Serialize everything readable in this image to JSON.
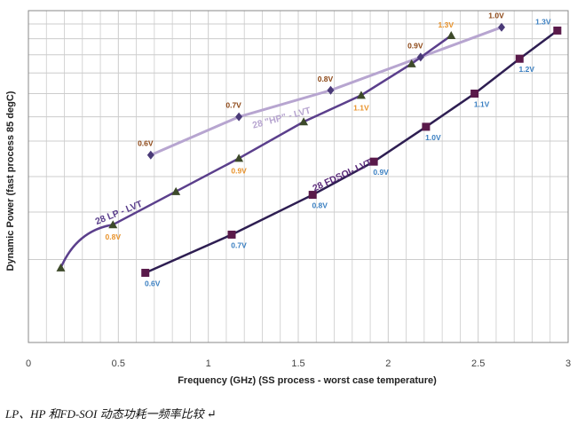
{
  "caption": "LP、HP 和FD-SOI 动态功耗一频率比较 ↵",
  "chart_data": {
    "type": "line",
    "title": "",
    "xlabel": "Frequency (GHz) (SS process - worst case temperature)",
    "ylabel": "Dynamic Power (fast process 85 degC)",
    "xlim": [
      0,
      3
    ],
    "x_ticks": [
      "0",
      "0.5",
      "1",
      "1.5",
      "2",
      "2.5",
      "3"
    ],
    "grid": true,
    "colors": {
      "grid": "#cccccc",
      "axis": "#888888",
      "orange": "#e8922a",
      "blue": "#3a7fc1",
      "brown": "#8b4513"
    },
    "series": [
      {
        "name": "28 \"HP\" - LVT",
        "color": "#b7a5d0",
        "marker": "diamond",
        "marker_color": "#4a3a78",
        "points": [
          {
            "x": 0.68,
            "y": 0.565,
            "label": "0.6V",
            "label_color": "#8b4513"
          },
          {
            "x": 1.17,
            "y": 0.68,
            "label": "0.7V",
            "label_color": "#8b4513"
          },
          {
            "x": 1.68,
            "y": 0.76,
            "label": "0.8V",
            "label_color": "#8b4513"
          },
          {
            "x": 2.18,
            "y": 0.86,
            "label": "0.9V",
            "label_color": "#8b4513"
          },
          {
            "x": 2.63,
            "y": 0.95,
            "label": "1.0V",
            "label_color": "#8b4513"
          }
        ]
      },
      {
        "name": "28 LP - LVT",
        "color": "#5b3f8c",
        "marker": "triangle",
        "marker_color": "#3d4a2a",
        "points": [
          {
            "x": 0.18,
            "y": 0.225,
            "label": "",
            "label_color": "#e8922a"
          },
          {
            "x": 0.47,
            "y": 0.355,
            "label": "0.8V",
            "label_color": "#e8922a"
          },
          {
            "x": 0.82,
            "y": 0.455,
            "label": "",
            "label_color": "#e8922a"
          },
          {
            "x": 1.17,
            "y": 0.555,
            "label": "0.9V",
            "label_color": "#e8922a"
          },
          {
            "x": 1.53,
            "y": 0.665,
            "label": "",
            "label_color": "#e8922a"
          },
          {
            "x": 1.85,
            "y": 0.745,
            "label": "1.1V",
            "label_color": "#e8922a"
          },
          {
            "x": 2.13,
            "y": 0.84,
            "label": "",
            "label_color": "#e8922a"
          },
          {
            "x": 2.35,
            "y": 0.925,
            "label": "1.3V",
            "label_color": "#e8922a"
          }
        ]
      },
      {
        "name": "28 FDSOI- LVT",
        "color": "#2e1e52",
        "marker": "square",
        "marker_color": "#5a1a4a",
        "points": [
          {
            "x": 0.65,
            "y": 0.21,
            "label": "0.6V",
            "label_color": "#3a7fc1"
          },
          {
            "x": 1.13,
            "y": 0.325,
            "label": "0.7V",
            "label_color": "#3a7fc1"
          },
          {
            "x": 1.58,
            "y": 0.445,
            "label": "0.8V",
            "label_color": "#3a7fc1"
          },
          {
            "x": 1.92,
            "y": 0.545,
            "label": "0.9V",
            "label_color": "#3a7fc1"
          },
          {
            "x": 2.21,
            "y": 0.65,
            "label": "1.0V",
            "label_color": "#3a7fc1"
          },
          {
            "x": 2.48,
            "y": 0.75,
            "label": "1.1V",
            "label_color": "#3a7fc1"
          },
          {
            "x": 2.73,
            "y": 0.855,
            "label": "1.2V",
            "label_color": "#3a7fc1"
          },
          {
            "x": 2.94,
            "y": 0.94,
            "label": "1.3V",
            "label_color": "#3a7fc1"
          }
        ]
      }
    ]
  }
}
